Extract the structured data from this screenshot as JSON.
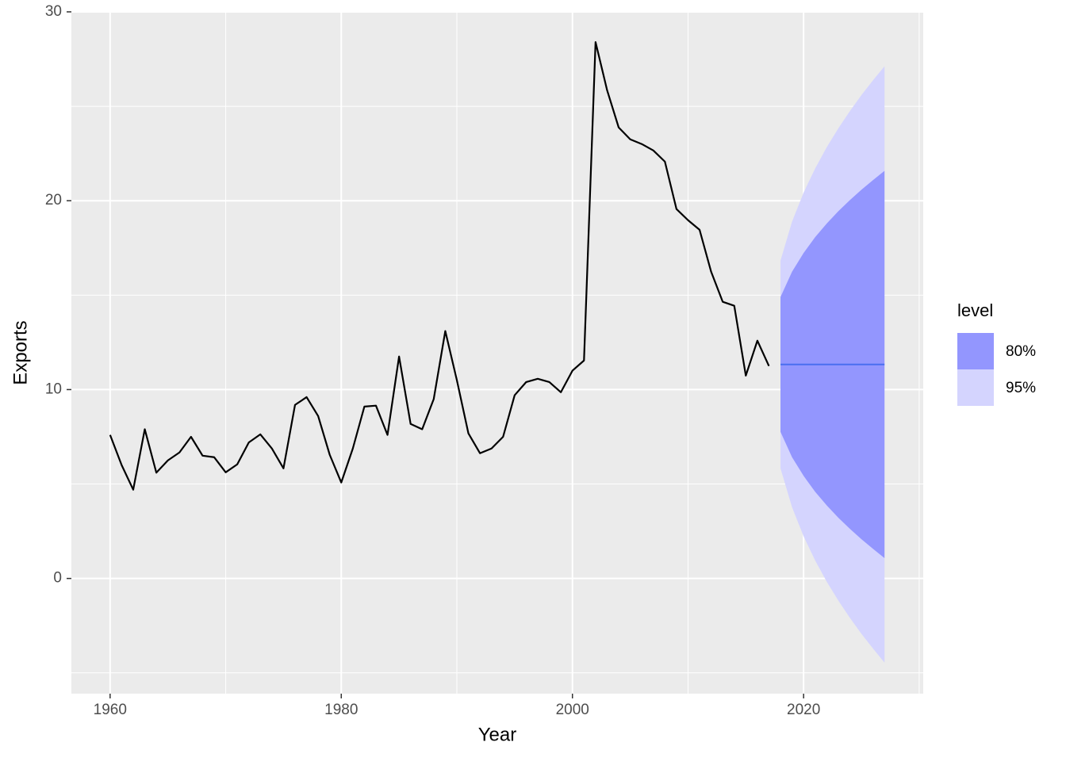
{
  "chart_data": {
    "type": "line",
    "x_label": "Year",
    "y_label": "Exports",
    "x": [
      1960,
      1961,
      1962,
      1963,
      1964,
      1965,
      1966,
      1967,
      1968,
      1969,
      1970,
      1971,
      1972,
      1973,
      1974,
      1975,
      1976,
      1977,
      1978,
      1979,
      1980,
      1981,
      1982,
      1983,
      1984,
      1985,
      1986,
      1987,
      1988,
      1989,
      1990,
      1991,
      1992,
      1993,
      1994,
      1995,
      1996,
      1997,
      1998,
      1999,
      2000,
      2001,
      2002,
      2003,
      2004,
      2005,
      2006,
      2007,
      2008,
      2009,
      2010,
      2011,
      2012,
      2013,
      2014,
      2015,
      2016,
      2017
    ],
    "values": [
      7.6,
      6.0,
      4.7,
      7.9,
      5.6,
      6.25,
      6.67,
      7.5,
      6.5,
      6.42,
      5.62,
      6.04,
      7.2,
      7.63,
      6.88,
      5.83,
      9.19,
      9.6,
      8.6,
      6.55,
      5.08,
      6.88,
      9.1,
      9.15,
      7.6,
      11.75,
      8.18,
      7.9,
      9.5,
      13.1,
      10.5,
      7.68,
      6.63,
      6.88,
      7.5,
      9.7,
      10.4,
      10.57,
      10.4,
      9.86,
      11.0,
      11.54,
      28.4,
      25.85,
      23.88,
      23.25,
      23.0,
      22.66,
      22.07,
      19.56,
      18.97,
      18.46,
      16.24,
      14.65,
      14.44,
      10.74,
      12.59,
      11.25
    ],
    "color": "#000000",
    "forecast": {
      "x": [
        2018,
        2019,
        2020,
        2021,
        2022,
        2023,
        2024,
        2025,
        2026,
        2027
      ],
      "mean": [
        11.33,
        11.33,
        11.33,
        11.33,
        11.33,
        11.33,
        11.33,
        11.33,
        11.33,
        11.33
      ],
      "color": "#4a6ff0"
    },
    "legend_title": "level",
    "bands": [
      {
        "name": "80%",
        "color": "#9396fe",
        "lower": [
          7.76,
          6.42,
          5.43,
          4.59,
          3.87,
          3.22,
          2.63,
          2.08,
          1.57,
          1.08
        ],
        "upper": [
          14.9,
          16.24,
          17.23,
          18.07,
          18.79,
          19.44,
          20.03,
          20.58,
          21.09,
          21.58
        ]
      },
      {
        "name": "95%",
        "color": "#d4d4fe",
        "lower": [
          5.83,
          3.77,
          2.23,
          0.95,
          -0.17,
          -1.17,
          -2.08,
          -2.93,
          -3.71,
          -4.46
        ],
        "upper": [
          16.83,
          18.89,
          20.43,
          21.71,
          22.83,
          23.83,
          24.74,
          25.59,
          26.37,
          27.12
        ]
      }
    ],
    "xlim": [
      1956.65,
      2030.35
    ],
    "ylim": [
      -6.1,
      30.04
    ],
    "xticks": [
      1960,
      1980,
      2000,
      2020
    ],
    "yticks": [
      0,
      10,
      20,
      30
    ],
    "xminor": [
      1970,
      1990,
      2010,
      2030
    ],
    "yminor": [
      -5,
      5,
      15,
      25
    ],
    "grid": true
  }
}
